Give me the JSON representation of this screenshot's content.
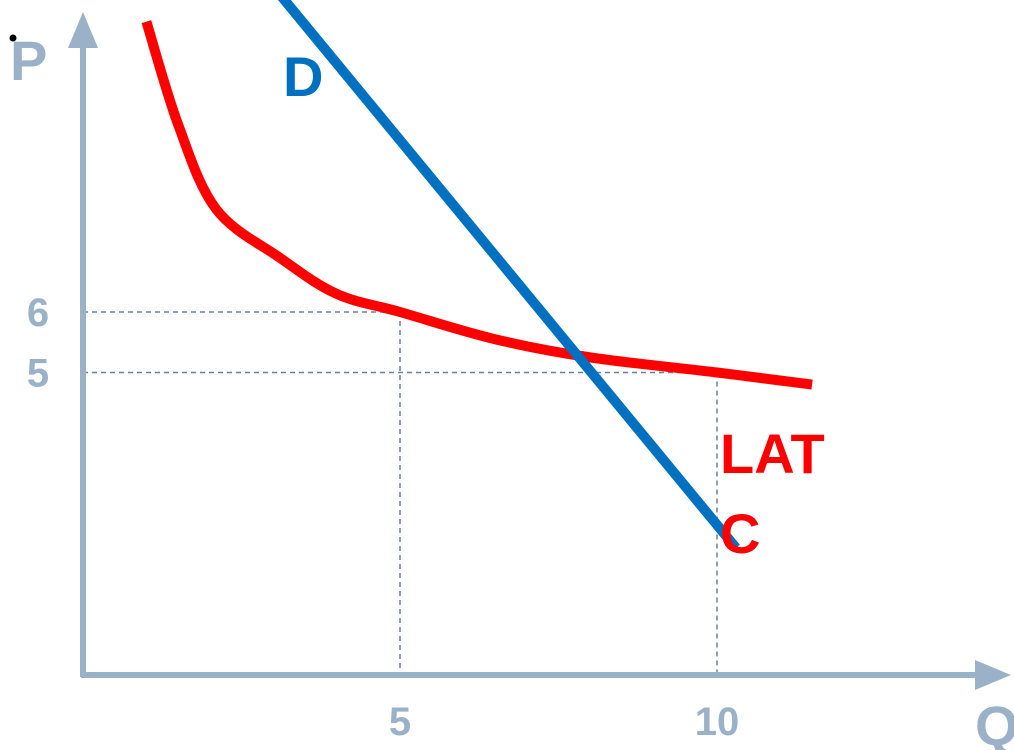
{
  "chart_data": {
    "type": "line",
    "title": "",
    "xlabel": "Q",
    "ylabel": "P",
    "xlim": [
      0,
      13
    ],
    "ylim": [
      0,
      14
    ],
    "x_ticks": [
      5,
      10
    ],
    "y_ticks": [
      6,
      5
    ],
    "guides": [
      {
        "x": 5,
        "y": 6
      },
      {
        "x": 10,
        "y": 5
      }
    ],
    "series": [
      {
        "name": "D",
        "color": "#0070C0",
        "x": [
          2.2,
          10.3
        ],
        "y": [
          12.4,
          2.1
        ]
      },
      {
        "name": "LAT",
        "name_line2": "C",
        "color": "#FF0000",
        "x": [
          1.0,
          1.5,
          2.1,
          3.1,
          4.0,
          5.0,
          6.5,
          8.0,
          10.0,
          11.5
        ],
        "y": [
          10.8,
          9.1,
          7.7,
          6.9,
          6.3,
          6.0,
          5.55,
          5.25,
          5.0,
          4.8
        ]
      }
    ],
    "colors": {
      "axis": "#9BB1C8",
      "guide": "#6F7FA0"
    },
    "grid": false,
    "legend": "none"
  }
}
